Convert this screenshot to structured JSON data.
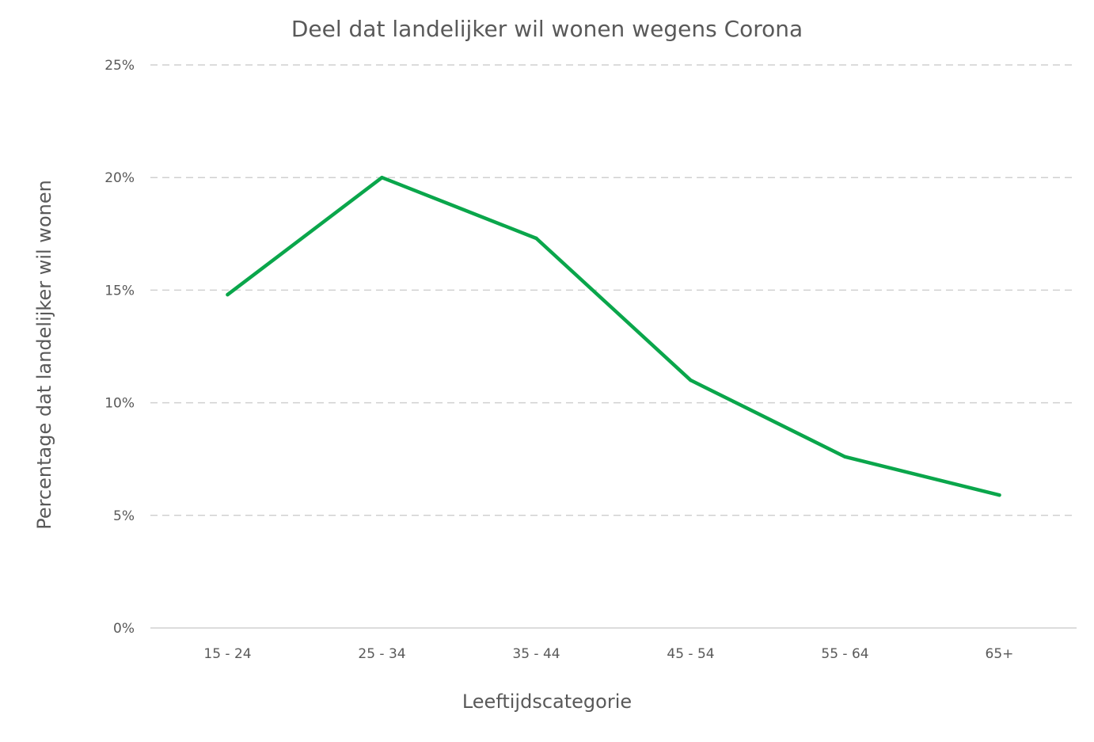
{
  "chart_data": {
    "type": "line",
    "title": "Deel dat landelijker wil wonen wegens Corona",
    "xlabel": "Leeftijdscategorie",
    "ylabel": "Percentage dat landelijker wil wonen",
    "categories": [
      "15 - 24",
      "25 - 34",
      "35 - 44",
      "45 - 54",
      "55 - 64",
      "65+"
    ],
    "series": [
      {
        "values": [
          14.8,
          20.0,
          17.3,
          11.0,
          7.6,
          5.9
        ],
        "color": "#0aa64b"
      }
    ],
    "yticks": [
      "0%",
      "5%",
      "10%",
      "15%",
      "20%",
      "25%"
    ],
    "ylim": [
      0,
      25
    ],
    "ytick_step": 5,
    "grid": true,
    "grid_style": "dashed",
    "legend": "none"
  }
}
